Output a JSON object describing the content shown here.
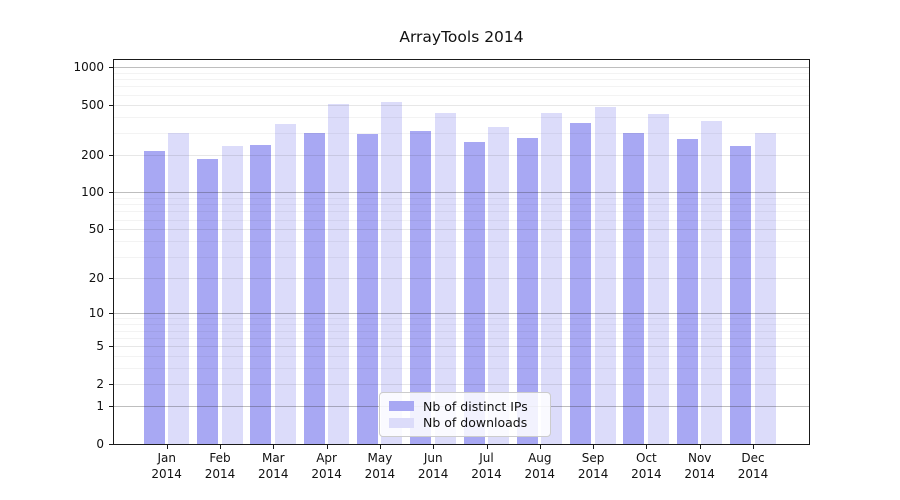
{
  "title": "ArrayTools 2014",
  "chart_data": {
    "type": "bar",
    "title": "ArrayTools 2014",
    "categories": [
      "Jan",
      "Feb",
      "Mar",
      "Apr",
      "May",
      "Jun",
      "Jul",
      "Aug",
      "Sep",
      "Oct",
      "Nov",
      "Dec"
    ],
    "category_year": "2014",
    "series": [
      {
        "name": "Nb of distinct IPs",
        "color": "#a8a8f3",
        "values": [
          212,
          184,
          239,
          297,
          293,
          306,
          250,
          271,
          356,
          300,
          267,
          236
        ]
      },
      {
        "name": "Nb of downloads",
        "color": "#dcdcfa",
        "values": [
          300,
          232,
          350,
          508,
          529,
          433,
          331,
          428,
          483,
          420,
          372,
          300
        ]
      }
    ],
    "y_scale": "log10(value+1)",
    "y_ticks": [
      0,
      1,
      2,
      5,
      10,
      20,
      50,
      100,
      200,
      500,
      1000
    ],
    "y_decade_gridlines": [
      1,
      10,
      100,
      1000
    ],
    "y_minor_gridlines": [
      3,
      4,
      6,
      7,
      8,
      9,
      30,
      40,
      60,
      70,
      80,
      90,
      300,
      400,
      600,
      700,
      800,
      900
    ],
    "ylim": [
      0,
      1000
    ],
    "grid": true,
    "legend_position": "bottom-center",
    "colors": {
      "distinct_ips_bar": "#a8a8f3",
      "downloads_bar": "#dcdcfa",
      "decade_gridline": "#bfbfbf",
      "labeled_gridline": "#e4e4e4",
      "minor_gridline": "#f2f2f2",
      "axis": "#1a1a1a"
    }
  }
}
